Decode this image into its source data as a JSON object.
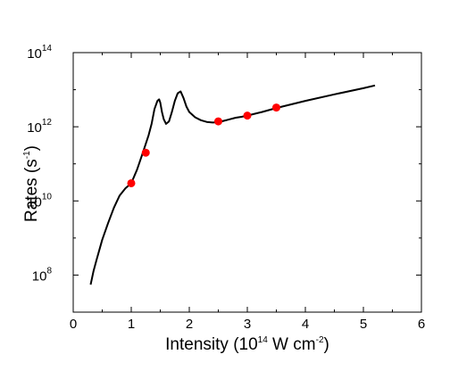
{
  "chart_data": {
    "type": "line",
    "xlabel": "Intensity (10",
    "xlabel_exp": "14",
    "xlabel_mid": " W cm",
    "xlabel_exp2": "-2",
    "xlabel_end": ")",
    "ylabel": "Rates (s",
    "ylabel_exp": "-1",
    "ylabel_end": ")",
    "xlim": [
      0,
      6
    ],
    "ylim": [
      10000000.0,
      100000000000000.0
    ],
    "yscale": "log",
    "x_ticks": [
      0,
      1,
      2,
      3,
      4,
      5,
      6
    ],
    "x_tick_labels": [
      "0",
      "1",
      "2",
      "3",
      "4",
      "5",
      "6"
    ],
    "y_ticks": [
      100000000.0,
      10000000000.0,
      1000000000000.0,
      100000000000000.0
    ],
    "y_tick_labels": [
      {
        "base": "10",
        "exp": "8"
      },
      {
        "base": "10",
        "exp": "10"
      },
      {
        "base": "10",
        "exp": "12"
      },
      {
        "base": "10",
        "exp": "14"
      }
    ],
    "grid": false,
    "series": [
      {
        "kind": "line",
        "color": "#000000",
        "x": [
          0.3,
          0.35,
          0.4,
          0.5,
          0.6,
          0.7,
          0.8,
          0.9,
          1.0,
          1.1,
          1.2,
          1.3,
          1.35,
          1.4,
          1.45,
          1.48,
          1.5,
          1.53,
          1.56,
          1.6,
          1.65,
          1.7,
          1.75,
          1.8,
          1.85,
          1.9,
          1.95,
          2.0,
          2.1,
          2.2,
          2.3,
          2.4,
          2.5,
          2.6,
          2.7,
          2.8,
          2.9,
          3.0,
          3.25,
          3.5,
          4.0,
          4.5,
          5.0,
          5.2
        ],
        "y": [
          55000000.0,
          130000000.0,
          250000000.0,
          900000000.0,
          2500000000.0,
          6500000000.0,
          14000000000.0,
          22000000000.0,
          30000000000.0,
          70000000000.0,
          200000000000.0,
          600000000000.0,
          1200000000000.0,
          3000000000000.0,
          5000000000000.0,
          5500000000000.0,
          4500000000000.0,
          2500000000000.0,
          1600000000000.0,
          1200000000000.0,
          1400000000000.0,
          2500000000000.0,
          5000000000000.0,
          8000000000000.0,
          9000000000000.0,
          6000000000000.0,
          3500000000000.0,
          2500000000000.0,
          1800000000000.0,
          1500000000000.0,
          1350000000000.0,
          1300000000000.0,
          1320000000000.0,
          1450000000000.0,
          1600000000000.0,
          1750000000000.0,
          1850000000000.0,
          2000000000000.0,
          2500000000000.0,
          3200000000000.0,
          5000000000000.0,
          7500000000000.0,
          11000000000000.0,
          13000000000000.0
        ]
      },
      {
        "kind": "scatter",
        "color": "#ff0000",
        "x": [
          1.0,
          1.25,
          2.5,
          3.0,
          3.5
        ],
        "y": [
          30000000000.0,
          200000000000.0,
          1400000000000.0,
          2000000000000.0,
          3300000000000.0
        ]
      }
    ]
  }
}
